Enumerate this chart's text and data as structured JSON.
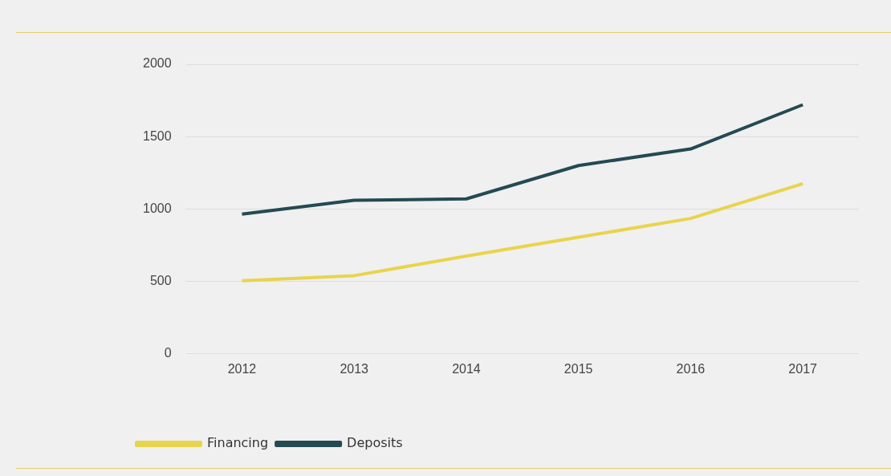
{
  "chart_data": {
    "type": "line",
    "categories": [
      "2012",
      "2013",
      "2014",
      "2015",
      "2016",
      "2017"
    ],
    "series": [
      {
        "name": "Financing",
        "color": "#e8d44d",
        "values": [
          505,
          540,
          675,
          805,
          935,
          1175
        ]
      },
      {
        "name": "Deposits",
        "color": "#244a52",
        "values": [
          965,
          1060,
          1070,
          1300,
          1415,
          1720
        ]
      }
    ],
    "ylim": [
      0,
      2000
    ],
    "yticks": [
      0,
      500,
      1000,
      1500,
      2000
    ],
    "grid": "y",
    "legend": "bottom left",
    "marker": "none",
    "line_style": "solid"
  }
}
